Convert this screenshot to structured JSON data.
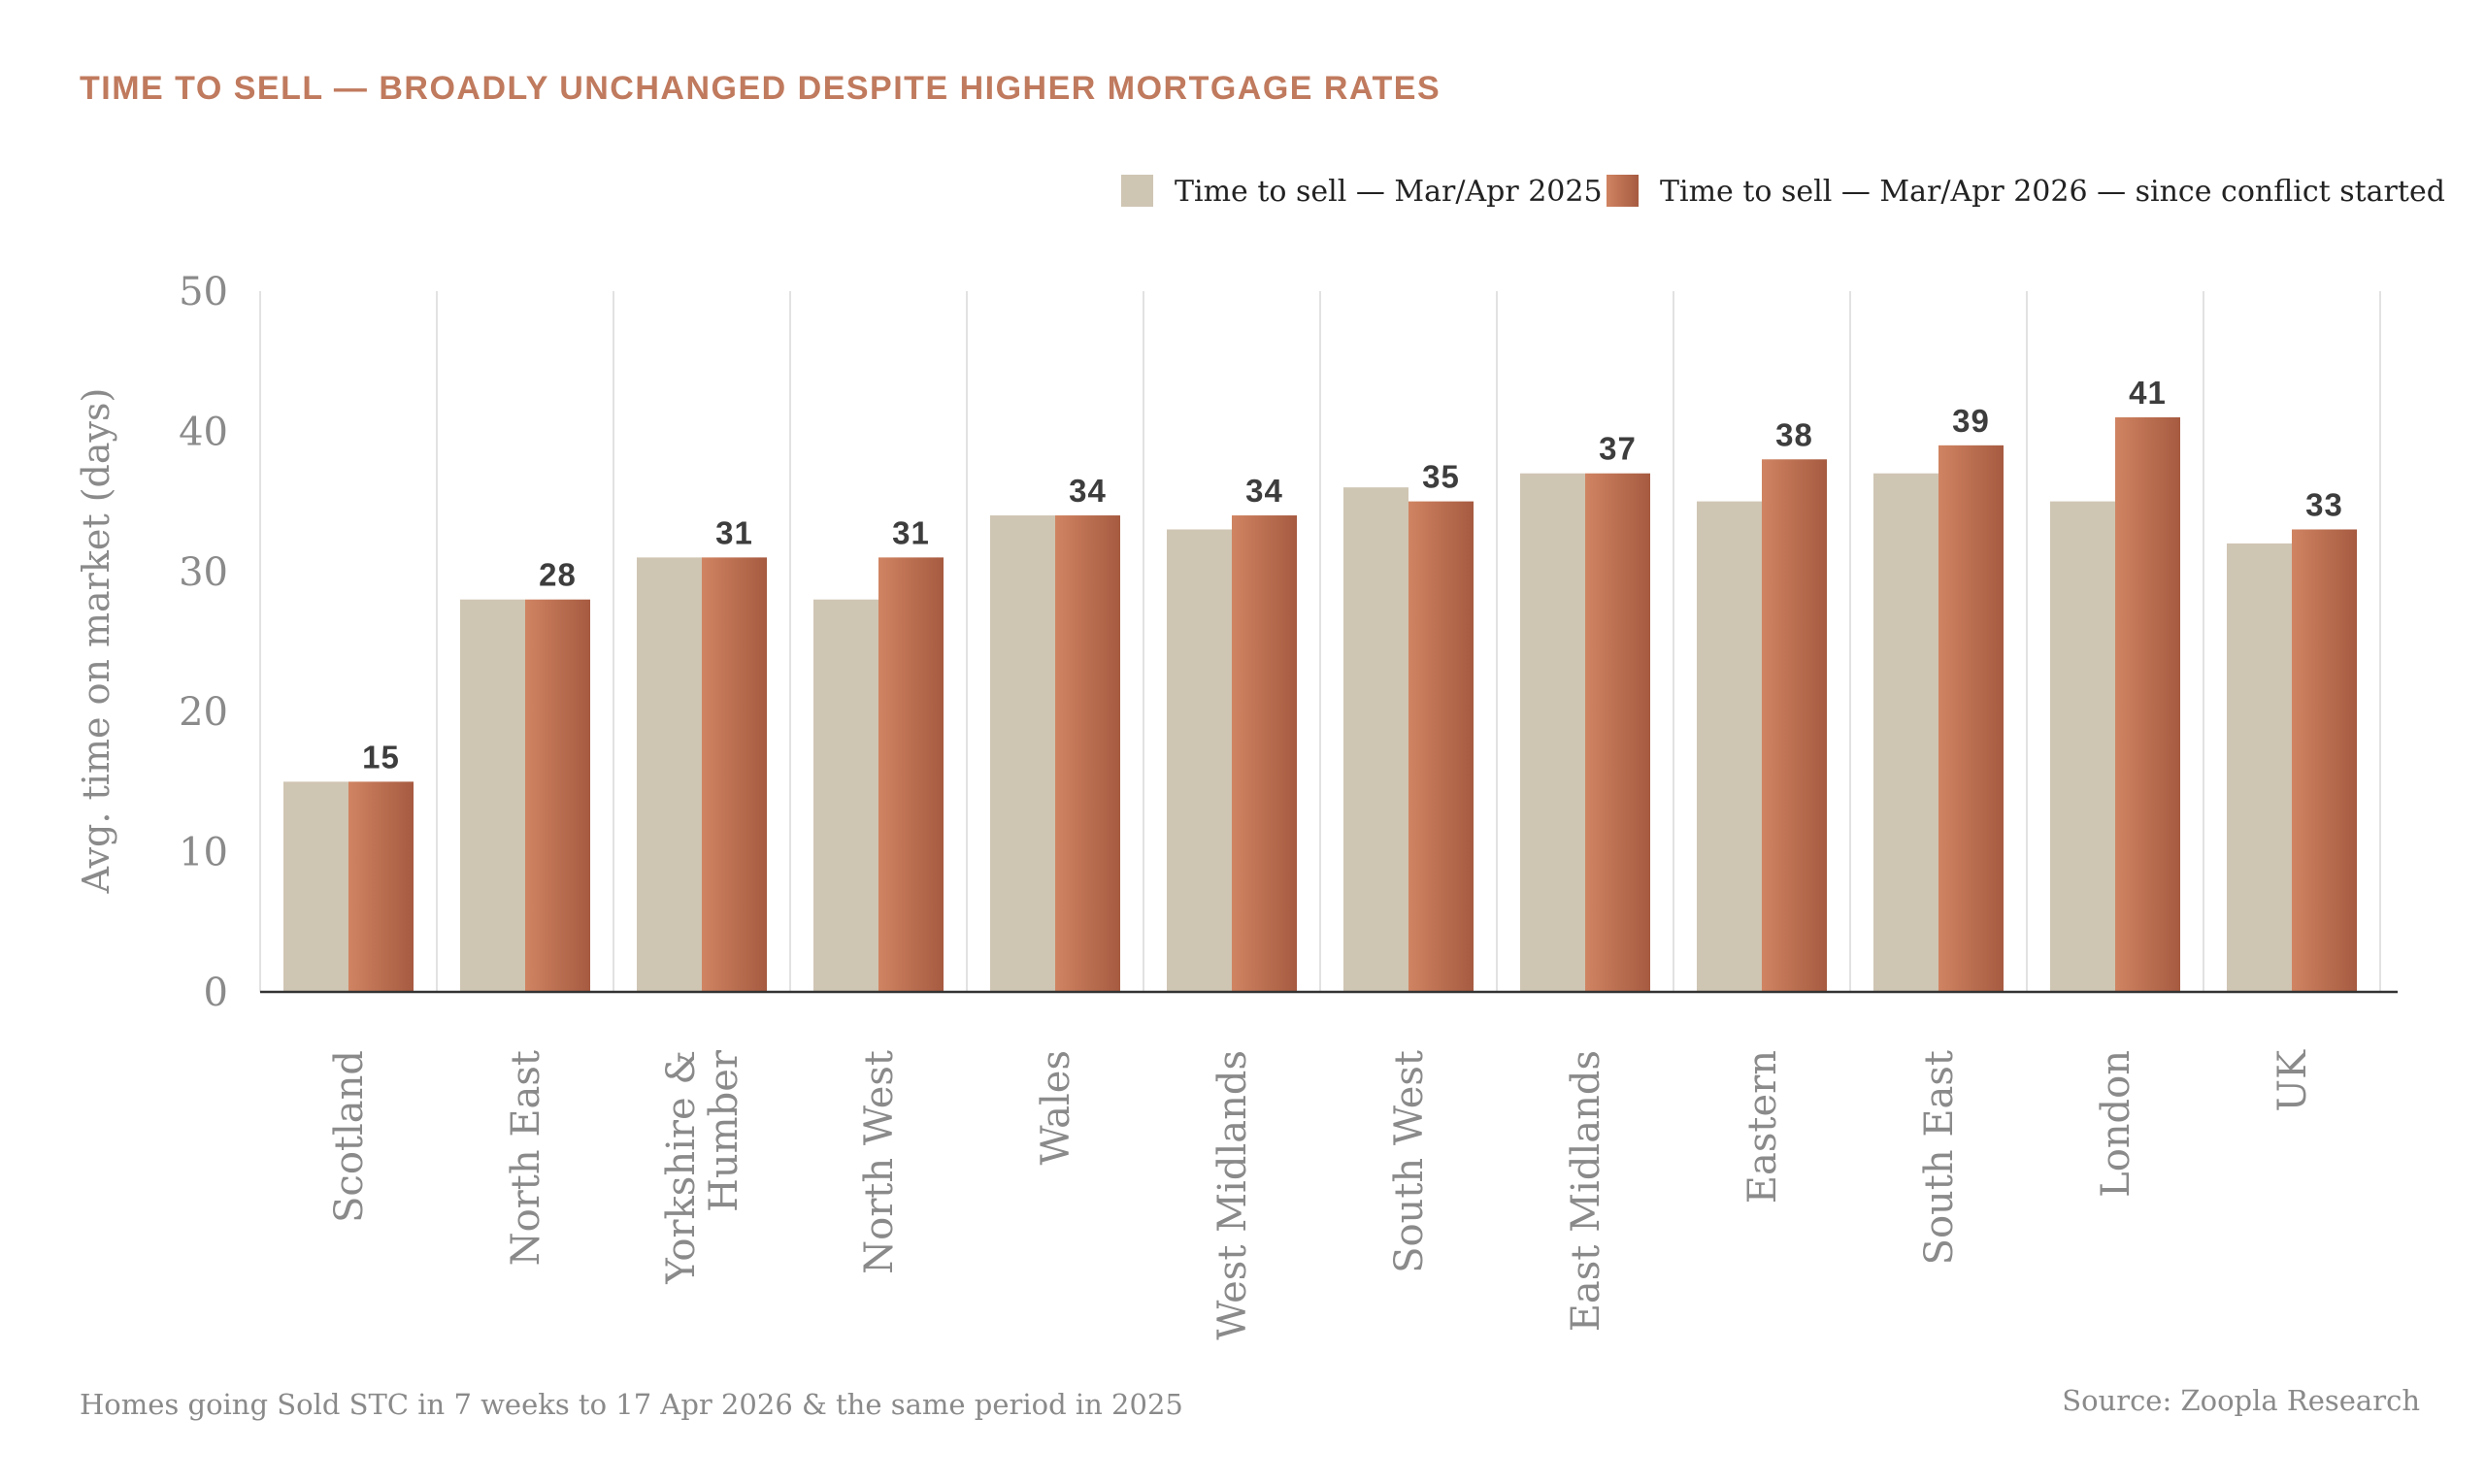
{
  "colors": {
    "title": "#c07a5e",
    "series_2025": "#cfc5b3",
    "series_2026_light": "#d08462",
    "series_2026_dark": "#a65a40",
    "axis_text": "#8a8a8a",
    "gridline": "#d9d9d9",
    "baseline": "#333333",
    "value_label": "#3d3d3d",
    "footer_text": "#8a8a8a"
  },
  "chart_data": {
    "type": "bar",
    "title": "TIME TO SELL — BROADLY UNCHANGED DESPITE HIGHER MORTGAGE RATES",
    "ylabel": "Avg. time on market (days)",
    "ylim": [
      0,
      50
    ],
    "yticks": [
      0,
      10,
      20,
      30,
      40,
      50
    ],
    "grid": "vertical separators",
    "legend_position": "top-right",
    "categories": [
      [
        "Scotland"
      ],
      [
        "North East"
      ],
      [
        "Yorkshire &",
        "Humber"
      ],
      [
        "North West"
      ],
      [
        "Wales"
      ],
      [
        "West Midlands"
      ],
      [
        "South West"
      ],
      [
        "East Midlands"
      ],
      [
        "Eastern"
      ],
      [
        "South East"
      ],
      [
        "London"
      ],
      [
        "UK"
      ]
    ],
    "series": [
      {
        "name": "Time to sell — Mar/Apr 2025",
        "values": [
          15,
          28,
          31,
          28,
          34,
          33,
          36,
          37,
          35,
          37,
          35,
          32
        ]
      },
      {
        "name": "Time to sell — Mar/Apr 2026 — since conflict started",
        "values": [
          15,
          28,
          31,
          31,
          34,
          34,
          35,
          37,
          38,
          39,
          41,
          33
        ],
        "data_labels": true
      }
    ]
  },
  "footer": {
    "note": "Homes going Sold STC in 7 weeks to 17 Apr 2026 & the same period in 2025",
    "source": "Source: Zoopla Research"
  }
}
